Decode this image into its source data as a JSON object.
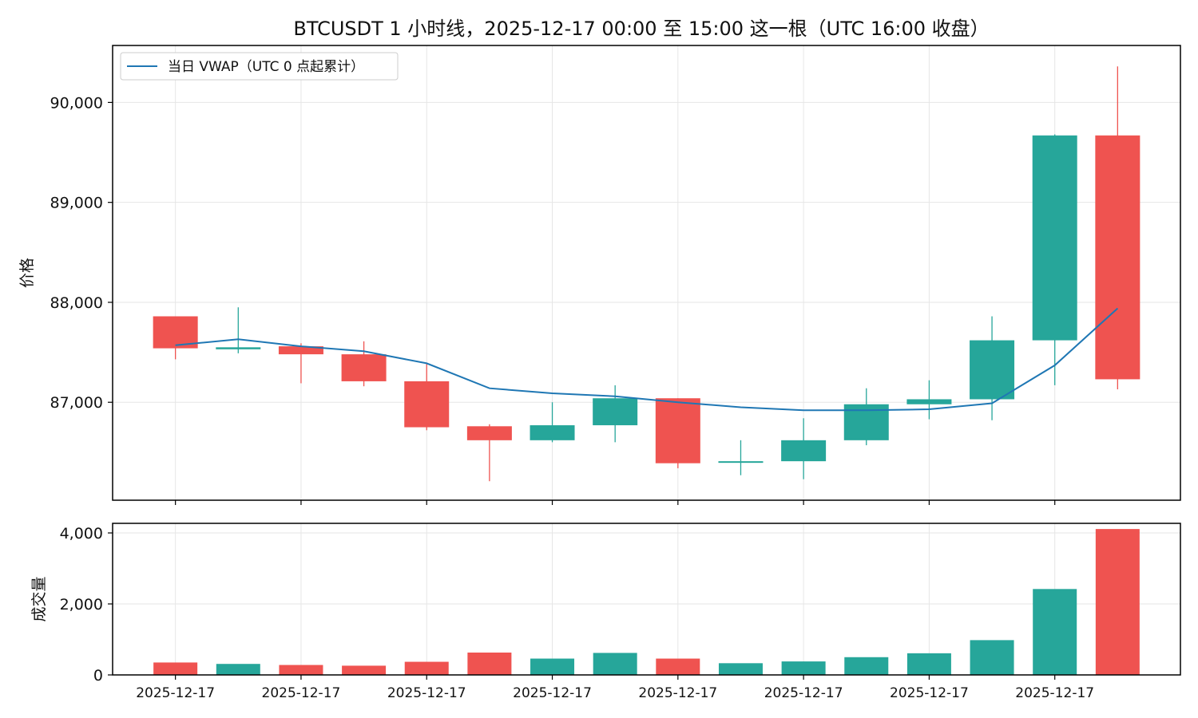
{
  "chart_data": {
    "type": "candlestick",
    "title": "BTCUSDT 1 小时线，2025-12-17 00:00 至 15:00 这一根（UTC 16:00 收盘）",
    "colors": {
      "up": "#26a69a",
      "down": "#ef5350",
      "vwap": "#1f77b4",
      "grid": "#e6e6e6",
      "axis": "#000000"
    },
    "price_panel": {
      "ylabel": "价格",
      "ylim": [
        86020,
        90570
      ],
      "yticks": [
        87000,
        88000,
        89000,
        90000
      ],
      "ytick_labels": [
        "87,000",
        "88,000",
        "89,000",
        "90,000"
      ],
      "grid": true,
      "legend": {
        "position": "top-left",
        "label": "当日 VWAP（UTC 0 点起累计）"
      }
    },
    "volume_panel": {
      "ylabel": "成交量",
      "ylim": [
        0,
        4270
      ],
      "yticks": [
        0,
        2000,
        4000
      ],
      "ytick_labels": [
        "0",
        "2,000",
        "4,000"
      ],
      "grid": true
    },
    "hours": [
      0,
      1,
      2,
      3,
      4,
      5,
      6,
      7,
      8,
      9,
      10,
      11,
      12,
      13,
      14,
      15
    ],
    "xtick_hours": [
      0,
      2,
      4,
      6,
      8,
      10,
      12,
      14
    ],
    "xtick_labels": [
      "2025-12-17",
      "2025-12-17",
      "2025-12-17",
      "2025-12-17",
      "2025-12-17",
      "2025-12-17",
      "2025-12-17",
      "2025-12-17"
    ],
    "candles": [
      {
        "open": 87860,
        "high": 87860,
        "low": 87430,
        "close": 87540
      },
      {
        "open": 87530,
        "high": 87950,
        "low": 87490,
        "close": 87550
      },
      {
        "open": 87560,
        "high": 87590,
        "low": 87190,
        "close": 87480
      },
      {
        "open": 87480,
        "high": 87610,
        "low": 87160,
        "close": 87210
      },
      {
        "open": 87210,
        "high": 87390,
        "low": 86720,
        "close": 86750
      },
      {
        "open": 86760,
        "high": 86780,
        "low": 86210,
        "close": 86620
      },
      {
        "open": 86620,
        "high": 87000,
        "low": 86600,
        "close": 86770
      },
      {
        "open": 86770,
        "high": 87170,
        "low": 86600,
        "close": 87040
      },
      {
        "open": 87040,
        "high": 87040,
        "low": 86340,
        "close": 86390
      },
      {
        "open": 86400,
        "high": 86620,
        "low": 86270,
        "close": 86410
      },
      {
        "open": 86410,
        "high": 86840,
        "low": 86230,
        "close": 86620
      },
      {
        "open": 86620,
        "high": 87140,
        "low": 86570,
        "close": 86980
      },
      {
        "open": 86980,
        "high": 87220,
        "low": 86830,
        "close": 87030
      },
      {
        "open": 87030,
        "high": 87860,
        "low": 86820,
        "close": 87620
      },
      {
        "open": 87620,
        "high": 89680,
        "low": 87170,
        "close": 89670
      },
      {
        "open": 89670,
        "high": 90360,
        "low": 87130,
        "close": 87230
      }
    ],
    "volume": [
      350,
      310,
      280,
      260,
      370,
      630,
      460,
      620,
      460,
      330,
      380,
      500,
      610,
      980,
      2420,
      4110
    ],
    "vwap": [
      87570,
      87630,
      87560,
      87510,
      87390,
      87140,
      87090,
      87060,
      87000,
      86950,
      86920,
      86920,
      86930,
      86990,
      87370,
      87940
    ]
  }
}
